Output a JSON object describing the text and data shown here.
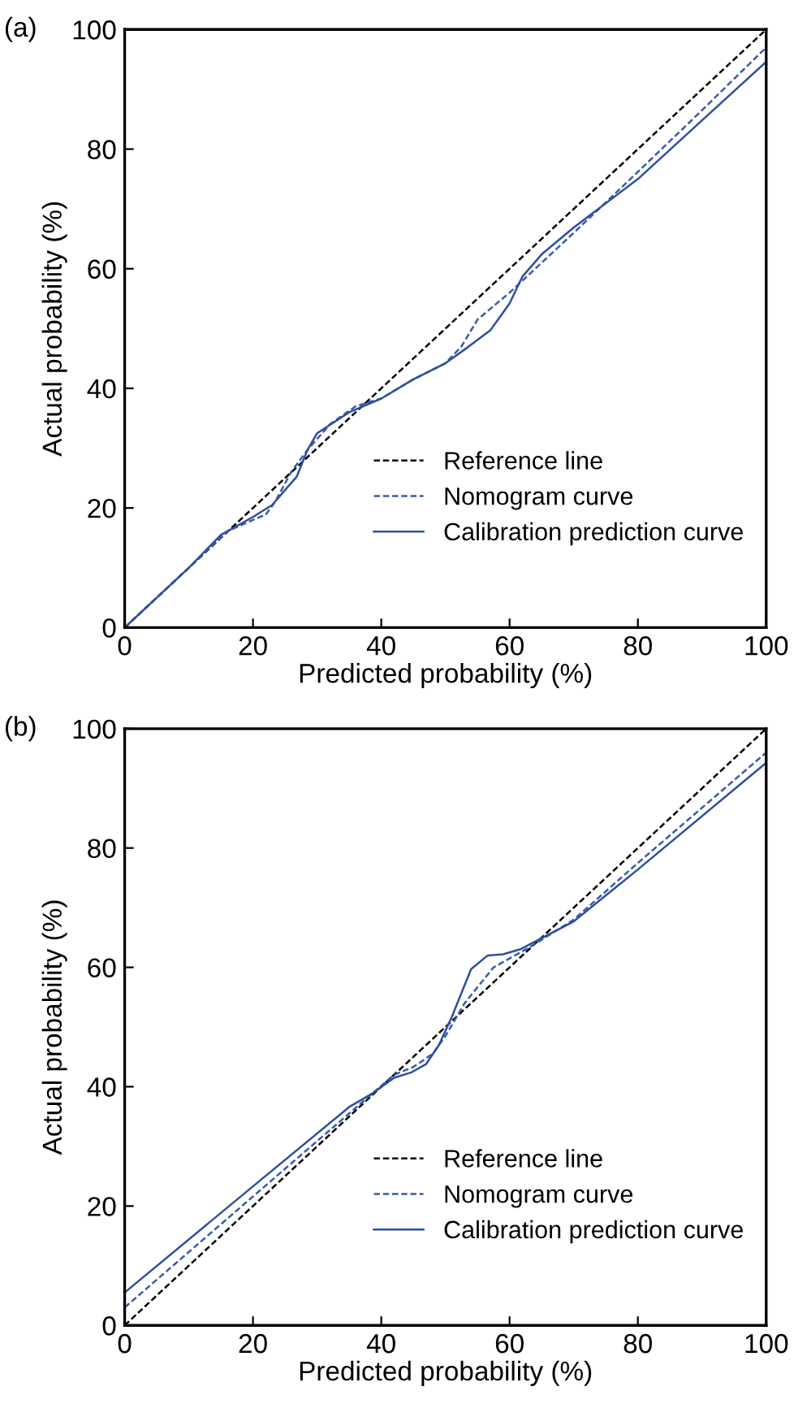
{
  "chart_data": [
    {
      "type": "line",
      "title": "(a)",
      "xlabel": "Predicted probability (%)",
      "ylabel": "Actual probability (%)",
      "xlim": [
        0,
        100
      ],
      "ylim": [
        0,
        100
      ],
      "xticks": [
        0,
        20,
        40,
        60,
        80,
        100
      ],
      "yticks": [
        0,
        20,
        40,
        60,
        80,
        100
      ],
      "grid": false,
      "legend": "bottom right",
      "marker": "none",
      "series": [
        {
          "name": "Reference line",
          "color": "#000000",
          "line_style": "dashed",
          "x": [
            0,
            100
          ],
          "values": [
            0,
            100
          ]
        },
        {
          "name": "Nomogram curve",
          "color": "#3a5ba8",
          "line_style": "dashed",
          "x": [
            0,
            10,
            16,
            20,
            22,
            23.5,
            26,
            28.5,
            32,
            36,
            40,
            45,
            50,
            52.5,
            55,
            60,
            70,
            80,
            90,
            100
          ],
          "values": [
            0,
            10,
            16.1,
            18,
            18.9,
            21.1,
            26.1,
            29.7,
            34,
            37,
            38.3,
            41.5,
            44.2,
            47,
            51.5,
            56,
            66,
            76.2,
            86.5,
            97
          ]
        },
        {
          "name": "Calibration prediction curve",
          "color": "#2f4f9e",
          "line_style": "solid",
          "x": [
            0,
            10,
            15,
            20,
            23,
            25,
            26.8,
            28.5,
            30,
            35,
            40,
            45,
            50,
            53,
            57,
            60,
            62,
            65,
            70,
            80,
            90,
            100
          ],
          "values": [
            0,
            10,
            15.5,
            18.5,
            20.5,
            23,
            25.2,
            29.7,
            32.5,
            36,
            38.3,
            41.5,
            44.2,
            46.5,
            49.7,
            54.2,
            58.7,
            62.4,
            66.9,
            75,
            84.8,
            94.6
          ]
        }
      ]
    },
    {
      "type": "line",
      "title": "(b)",
      "xlabel": "Predicted probability (%)",
      "ylabel": "Actual probability (%)",
      "xlim": [
        0,
        100
      ],
      "ylim": [
        0,
        100
      ],
      "xticks": [
        0,
        20,
        40,
        60,
        80,
        100
      ],
      "yticks": [
        0,
        20,
        40,
        60,
        80,
        100
      ],
      "grid": false,
      "legend": "bottom right",
      "marker": "none",
      "series": [
        {
          "name": "Reference line",
          "color": "#000000",
          "line_style": "dashed",
          "x": [
            0,
            100
          ],
          "values": [
            0,
            100
          ]
        },
        {
          "name": "Nomogram curve",
          "color": "#3a5ba8",
          "line_style": "dashed",
          "x": [
            0,
            20,
            38,
            42,
            45,
            48,
            50,
            53,
            57.5,
            60,
            63,
            70,
            80,
            100
          ],
          "values": [
            3,
            21.6,
            38.3,
            42,
            43.3,
            45.5,
            48.5,
            54,
            60,
            61.5,
            63.3,
            68,
            77.5,
            96
          ]
        },
        {
          "name": "Calibration prediction curve",
          "color": "#2f4f9e",
          "line_style": "solid",
          "x": [
            0,
            20,
            35,
            38.8,
            42,
            44.7,
            47,
            49,
            51,
            54,
            56.6,
            59,
            61.6,
            65,
            70,
            80,
            100
          ],
          "values": [
            5.5,
            23.3,
            36.6,
            39,
            41.5,
            42.4,
            43.8,
            47,
            51.7,
            59.7,
            62,
            62.2,
            63,
            64.9,
            67.7,
            76.4,
            94.3
          ]
        }
      ]
    }
  ]
}
